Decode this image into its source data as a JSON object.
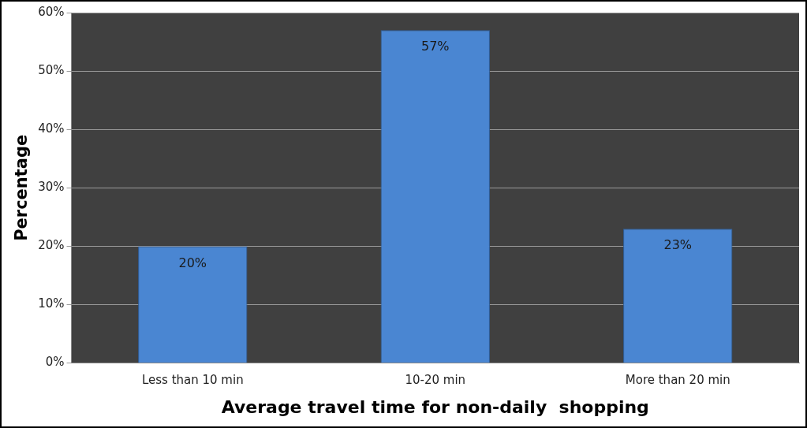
{
  "chart_data": {
    "type": "bar",
    "xlabel": "Average travel time for non-daily  shopping",
    "ylabel": "Percentage",
    "categories": [
      "Less than 10 min",
      "10-20 min",
      "More than 20 min"
    ],
    "values": [
      20,
      57,
      23
    ],
    "color": "#4a86d2",
    "value_labels": [
      "20%",
      "57%",
      "23%"
    ],
    "ylim": [
      0,
      60
    ],
    "yticks": [
      {
        "value": 0,
        "label": "0%"
      },
      {
        "value": 10,
        "label": "10%"
      },
      {
        "value": 20,
        "label": "20%"
      },
      {
        "value": 30,
        "label": "30%"
      },
      {
        "value": 40,
        "label": "40%"
      },
      {
        "value": 50,
        "label": "50%"
      },
      {
        "value": 60,
        "label": "60%"
      }
    ],
    "grid": "y",
    "legend": false
  }
}
